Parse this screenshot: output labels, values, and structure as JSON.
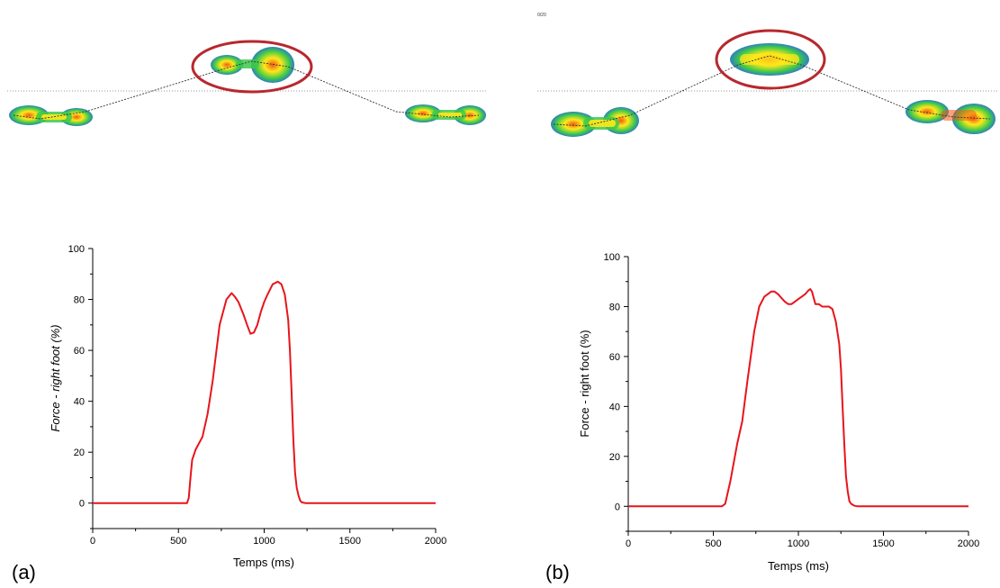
{
  "panels": [
    {
      "label": "(a)",
      "corner_mark": ""
    },
    {
      "label": "(b)",
      "corner_mark": "0/20 "
    }
  ],
  "colors": {
    "curve": "#e8141b",
    "ellipse": "#b7282e",
    "footprint_outer": "#2e7bc4",
    "footprint_mid": "#3ec94a",
    "footprint_inner": "#ffe81a",
    "footprint_hot": "#f05a14",
    "trajectory": "#333333",
    "baseline": "#999999"
  },
  "chart_data": [
    {
      "type": "line",
      "title": "",
      "xlabel": "Temps (ms)",
      "ylabel": "Force - right foot (%)",
      "ylabel_style": "italic",
      "xlim": [
        0,
        2000
      ],
      "ylim": [
        -10,
        100
      ],
      "xticks": [
        "0",
        "500",
        "1000",
        "1500",
        "2000"
      ],
      "yticks": [
        "0",
        "20",
        "40",
        "60",
        "80",
        "100"
      ],
      "grid": false,
      "legend": "none",
      "series": [
        {
          "x": [
            0,
            550,
            560,
            570,
            580,
            600,
            640,
            670,
            700,
            740,
            780,
            810,
            830,
            850,
            880,
            900,
            920,
            940,
            960,
            980,
            1000,
            1020,
            1050,
            1080,
            1100,
            1120,
            1140,
            1150,
            1160,
            1170,
            1180,
            1190,
            1200,
            1210,
            1220,
            1240,
            2000
          ],
          "y": [
            0,
            0,
            2,
            10,
            17,
            21,
            26,
            35,
            48,
            70,
            80,
            82.5,
            81,
            79,
            74,
            70,
            66.5,
            67,
            70,
            75,
            79,
            82,
            86,
            87,
            86,
            82,
            72,
            60,
            43,
            25,
            12,
            6,
            3,
            1,
            0.3,
            0,
            0
          ]
        }
      ]
    },
    {
      "type": "line",
      "title": "",
      "xlabel": "Temps (ms)",
      "ylabel": "Force - right foot (%)",
      "ylabel_style": "normal",
      "xlim": [
        0,
        2000
      ],
      "ylim": [
        -10,
        100
      ],
      "xticks": [
        "0",
        "500",
        "1000",
        "1500",
        "2000"
      ],
      "yticks": [
        "0",
        "20",
        "40",
        "60",
        "80",
        "100"
      ],
      "grid": false,
      "legend": "none",
      "series": [
        {
          "x": [
            0,
            550,
            570,
            600,
            640,
            670,
            700,
            740,
            770,
            800,
            840,
            860,
            880,
            900,
            920,
            940,
            960,
            980,
            1000,
            1020,
            1040,
            1060,
            1070,
            1080,
            1100,
            1120,
            1140,
            1160,
            1180,
            1200,
            1220,
            1240,
            1250,
            1260,
            1270,
            1280,
            1290,
            1300,
            1310,
            1330,
            1350,
            2000
          ],
          "y": [
            0,
            0,
            1,
            10,
            25,
            34,
            50,
            70,
            80,
            84,
            86,
            86,
            85,
            83.5,
            82,
            81,
            81,
            82,
            83,
            84,
            85,
            86.5,
            87,
            86,
            81,
            81,
            80,
            80,
            80,
            79,
            74,
            65,
            55,
            40,
            25,
            12,
            6,
            2,
            1,
            0.2,
            0,
            0
          ]
        }
      ]
    }
  ]
}
